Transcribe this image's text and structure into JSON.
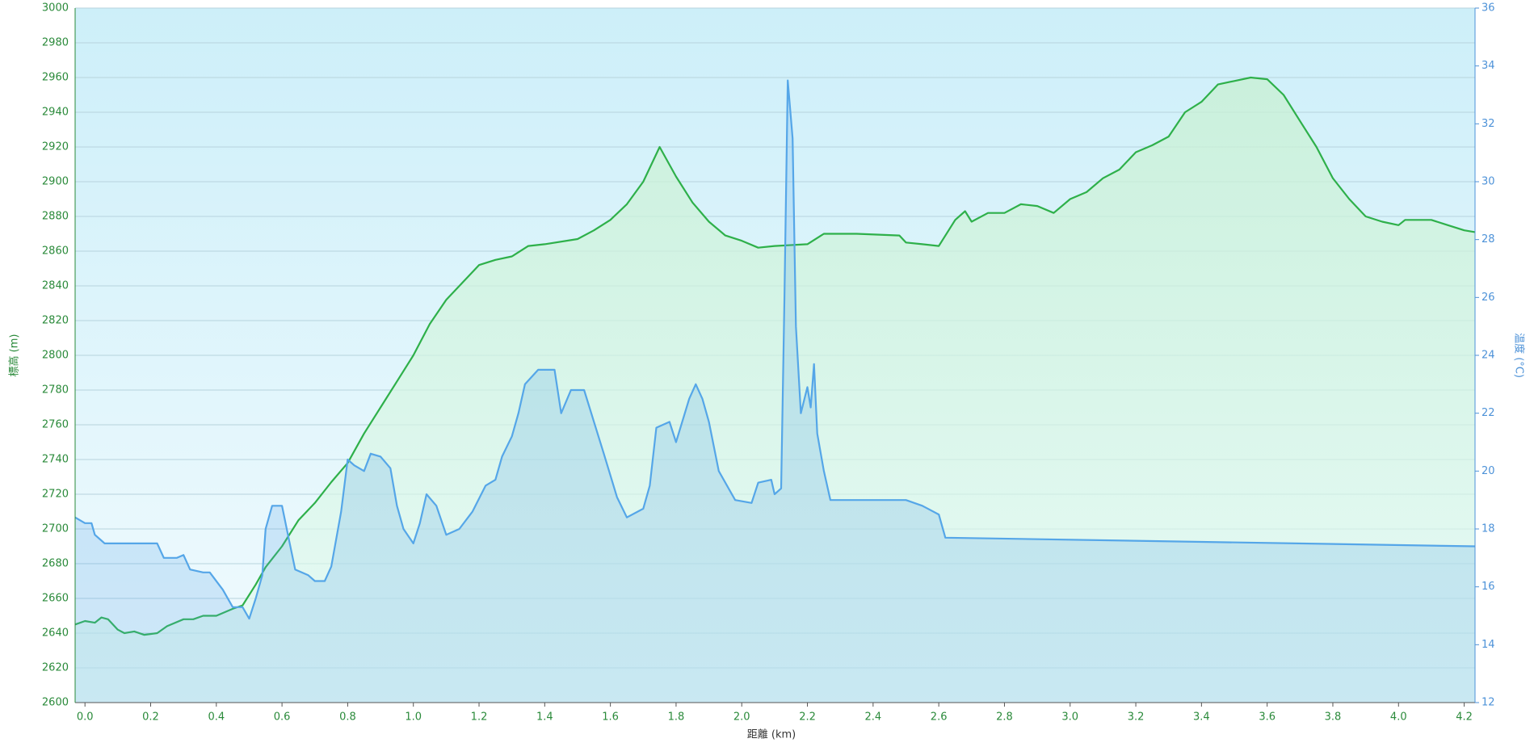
{
  "chart_data": {
    "type": "line",
    "area": true,
    "grid": true,
    "x_label": "距離 (km)",
    "y_label": "標高 (m)",
    "y2_label": "温度 (°C)",
    "xlim": [
      -0.03,
      4.233
    ],
    "ylim": [
      2600,
      3000
    ],
    "y2lim": [
      12,
      36
    ],
    "xticks": [
      {
        "value": 0,
        "label": "0.0"
      },
      0.2,
      0.4,
      0.6,
      0.8,
      {
        "value": 1,
        "label": "1.0"
      },
      1.2,
      1.4,
      1.6,
      1.8,
      {
        "value": 2,
        "label": "2.0"
      },
      2.2,
      2.4,
      2.6,
      2.8,
      {
        "value": 3,
        "label": "3.0"
      },
      3.2,
      3.4,
      3.6,
      3.8,
      {
        "value": 4,
        "label": "4.0"
      },
      4.2
    ],
    "yticks": [
      2600,
      2620,
      2640,
      2660,
      2680,
      2700,
      2720,
      2740,
      2760,
      2780,
      2800,
      2820,
      2840,
      2860,
      2880,
      2900,
      2920,
      2940,
      2960,
      2980,
      3000
    ],
    "y2ticks": [
      12,
      14,
      16,
      18,
      20,
      22,
      24,
      26,
      28,
      30,
      32,
      34,
      36
    ],
    "series": [
      {
        "color": "#2eb04a",
        "axis": "y",
        "x": [
          -0.03,
          0,
          0.03,
          0.05,
          0.07,
          0.1,
          0.12,
          0.15,
          0.18,
          0.22,
          0.25,
          0.3,
          0.33,
          0.36,
          0.4,
          0.45,
          0.48,
          0.52,
          0.55,
          0.6,
          0.65,
          0.7,
          0.75,
          0.8,
          0.85,
          0.9,
          0.95,
          1,
          1.05,
          1.1,
          1.15,
          1.2,
          1.25,
          1.3,
          1.35,
          1.4,
          1.5,
          1.55,
          1.6,
          1.65,
          1.7,
          1.75,
          1.8,
          1.85,
          1.9,
          1.95,
          2,
          2.05,
          2.1,
          2.2,
          2.25,
          2.35,
          2.48,
          2.5,
          2.55,
          2.6,
          2.65,
          2.68,
          2.7,
          2.75,
          2.8,
          2.85,
          2.9,
          2.95,
          3,
          3.05,
          3.1,
          3.15,
          3.2,
          3.25,
          3.3,
          3.35,
          3.4,
          3.45,
          3.5,
          3.55,
          3.6,
          3.65,
          3.7,
          3.75,
          3.8,
          3.85,
          3.9,
          3.95,
          4,
          4.02,
          4.1,
          4.15,
          4.2,
          4.233
        ],
        "values": [
          2645,
          2647,
          2646,
          2649,
          2648,
          2642,
          2640,
          2641,
          2639,
          2640,
          2644,
          2648,
          2648,
          2650,
          2650,
          2654,
          2656,
          2668,
          2678,
          2690,
          2705,
          2715,
          2727,
          2738,
          2755,
          2770,
          2785,
          2800,
          2818,
          2832,
          2842,
          2852,
          2855,
          2857,
          2863,
          2864,
          2867,
          2872,
          2878,
          2887,
          2900,
          2920,
          2903,
          2888,
          2877,
          2869,
          2866,
          2862,
          2863,
          2864,
          2870,
          2870,
          2869,
          2865,
          2864,
          2863,
          2878,
          2883,
          2877,
          2882,
          2882,
          2887,
          2886,
          2882,
          2890,
          2894,
          2902,
          2907,
          2917,
          2921,
          2926,
          2940,
          2946,
          2956,
          2958,
          2960,
          2959,
          2950,
          2935,
          2920,
          2902,
          2890,
          2880,
          2877,
          2875,
          2878,
          2878,
          2875,
          2872,
          2871
        ]
      },
      {
        "color": "#55a6e8",
        "axis": "y2",
        "x": [
          -0.03,
          0,
          0.02,
          0.03,
          0.06,
          0.2,
          0.22,
          0.24,
          0.28,
          0.3,
          0.32,
          0.36,
          0.38,
          0.42,
          0.45,
          0.48,
          0.5,
          0.52,
          0.54,
          0.55,
          0.57,
          0.6,
          0.62,
          0.64,
          0.68,
          0.7,
          0.73,
          0.75,
          0.78,
          0.8,
          0.82,
          0.85,
          0.87,
          0.9,
          0.93,
          0.95,
          0.97,
          1,
          1.02,
          1.04,
          1.07,
          1.1,
          1.14,
          1.18,
          1.22,
          1.25,
          1.27,
          1.3,
          1.32,
          1.34,
          1.38,
          1.43,
          1.45,
          1.48,
          1.52,
          1.55,
          1.58,
          1.62,
          1.65,
          1.7,
          1.72,
          1.74,
          1.78,
          1.8,
          1.84,
          1.86,
          1.88,
          1.9,
          1.93,
          1.98,
          2.03,
          2.05,
          2.09,
          2.1,
          2.12,
          2.13,
          2.14,
          2.155,
          2.165,
          2.18,
          2.2,
          2.21,
          2.22,
          2.23,
          2.25,
          2.27,
          2.5,
          2.55,
          2.6,
          2.62,
          4.233
        ],
        "values": [
          18.4,
          18.2,
          18.2,
          17.8,
          17.5,
          17.5,
          17.5,
          17,
          17,
          17.1,
          16.6,
          16.5,
          16.5,
          15.9,
          15.3,
          15.3,
          14.9,
          15.6,
          16.4,
          18,
          18.8,
          18.8,
          17.7,
          16.6,
          16.4,
          16.2,
          16.2,
          16.7,
          18.6,
          20.4,
          20.2,
          20,
          20.6,
          20.5,
          20.1,
          18.8,
          18,
          17.5,
          18.2,
          19.2,
          18.8,
          17.8,
          18,
          18.6,
          19.5,
          19.7,
          20.5,
          21.2,
          22,
          23,
          23.5,
          23.5,
          22,
          22.8,
          22.8,
          21.7,
          20.6,
          19.1,
          18.4,
          18.7,
          19.5,
          21.5,
          21.7,
          21,
          22.5,
          23,
          22.5,
          21.7,
          20,
          19,
          18.9,
          19.6,
          19.7,
          19.2,
          19.4,
          26,
          33.5,
          31.5,
          25,
          22,
          22.9,
          22.2,
          23.7,
          21.3,
          20,
          19,
          19,
          18.8,
          18.5,
          17.7,
          17.4
        ]
      }
    ]
  }
}
